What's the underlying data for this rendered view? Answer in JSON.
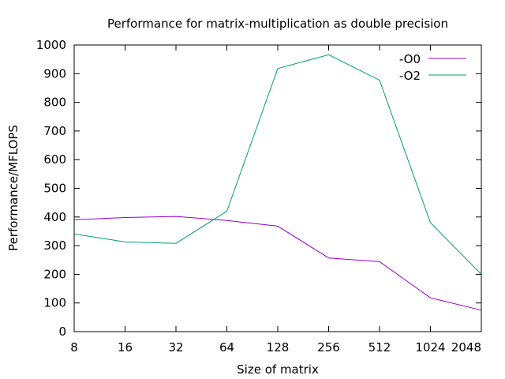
{
  "chart_data": {
    "type": "line",
    "title": "Performance for matrix-multiplication as double precision",
    "xlabel": "Size of matrix",
    "ylabel": "Performance/MFLOPS",
    "x_scale": "log2",
    "categories": [
      "8",
      "16",
      "32",
      "64",
      "128",
      "256",
      "512",
      "1024",
      "2048"
    ],
    "ylim": [
      0,
      1000
    ],
    "y_ticks": [
      "0",
      "100",
      "200",
      "300",
      "400",
      "500",
      "600",
      "700",
      "800",
      "900",
      "1000"
    ],
    "grid": false,
    "legend_position": "top-right",
    "series": [
      {
        "name": "-O0",
        "color": "#9400d3",
        "values": [
          390,
          398,
          402,
          388,
          368,
          257,
          244,
          118,
          75
        ]
      },
      {
        "name": "-O2",
        "color": "#009e73",
        "values": [
          341,
          313,
          308,
          420,
          918,
          966,
          877,
          380,
          200
        ]
      }
    ]
  }
}
